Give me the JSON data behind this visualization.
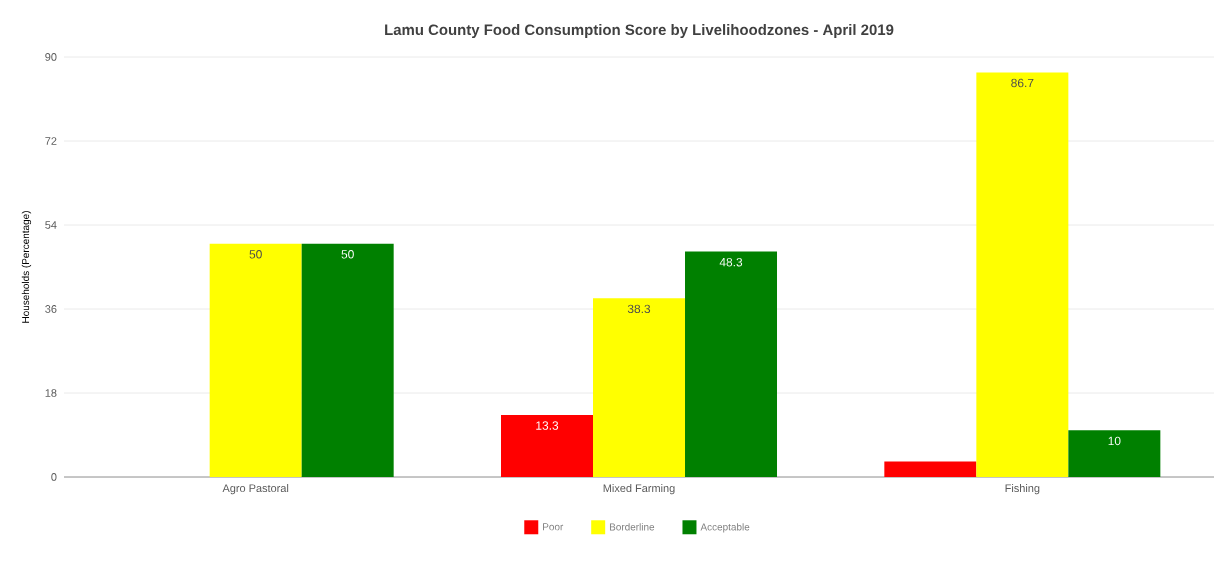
{
  "chart_data": {
    "type": "bar",
    "title": "Lamu County Food Consumption Score by Livelihoodzones - April 2019",
    "ylabel": "Households (Percentage)",
    "categories": [
      "Agro Pastoral",
      "Mixed Farming",
      "Fishing"
    ],
    "series": [
      {
        "name": "Poor",
        "color": "#ff0000",
        "values": [
          0,
          13.3,
          3.3
        ],
        "value_labels": [
          null,
          "13.3",
          null
        ]
      },
      {
        "name": "Borderline",
        "color": "#ffff00",
        "values": [
          50,
          38.3,
          86.7
        ],
        "value_labels": [
          "50",
          "38.3",
          "86.7"
        ]
      },
      {
        "name": "Acceptable",
        "color": "#008000",
        "values": [
          50,
          48.3,
          10
        ],
        "value_labels": [
          "50",
          "48.3",
          "10"
        ]
      }
    ],
    "ylim": [
      0,
      90
    ],
    "yticks": [
      0,
      18,
      36,
      54,
      72,
      90
    ],
    "grid": "y",
    "legend": "bottom"
  }
}
